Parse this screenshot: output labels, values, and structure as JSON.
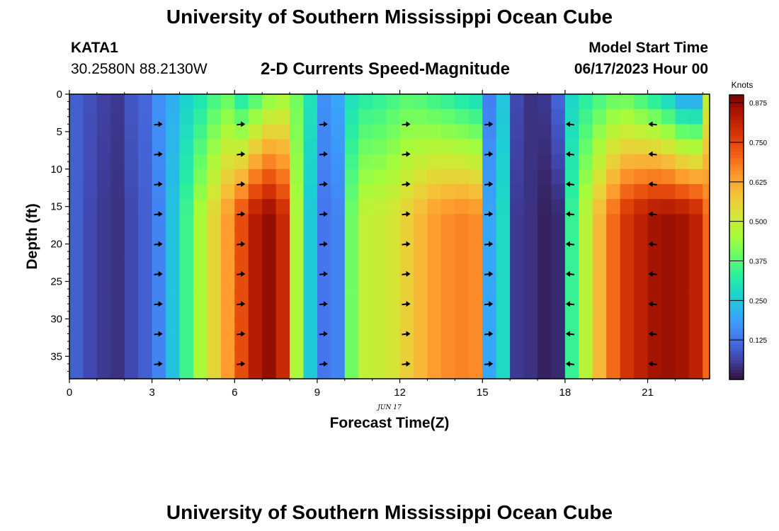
{
  "header": {
    "title_top": "University of Southern Mississippi Ocean Cube",
    "station": "KATA1",
    "coords": "30.2580N  88.2130W",
    "subtitle": "2-D Currents Speed-Magnitude",
    "model_label": "Model Start Time",
    "model_time": "06/17/2023 Hour 00",
    "title_bottom": "University of Southern Mississippi Ocean Cube"
  },
  "chart_data": {
    "type": "heatmap",
    "title": "2-D Currents Speed-Magnitude",
    "xlabel": "Forecast Time(Z)",
    "ylabel": "Depth (ft)",
    "x_date_label": "JUN 17",
    "xlim": [
      0,
      23.25
    ],
    "ylim": [
      0,
      38
    ],
    "x_ticks": [
      0,
      3,
      6,
      9,
      12,
      15,
      18,
      21
    ],
    "y_ticks": [
      0,
      5,
      10,
      15,
      20,
      25,
      30,
      35
    ],
    "colorbar": {
      "label": "Knots",
      "range": [
        0,
        0.9
      ],
      "ticks": [
        "0.875",
        "0.750",
        "0.625",
        "0.500",
        "0.375",
        "0.250",
        "0.125"
      ]
    },
    "colormap": [
      "#30123b",
      "#4145ab",
      "#4675ed",
      "#39a2fc",
      "#1bcfd4",
      "#24eca6",
      "#61fc6c",
      "#a4fc3b",
      "#d1e834",
      "#f3c63a",
      "#fe9b2d",
      "#f36315",
      "#d93806",
      "#b11901",
      "#7a0402"
    ],
    "time_hours": [
      0,
      0.5,
      1,
      1.5,
      2,
      2.5,
      3,
      3.5,
      4,
      4.5,
      5,
      5.5,
      6,
      6.5,
      7,
      7.5,
      8,
      8.5,
      9,
      9.5,
      10,
      10.5,
      11,
      11.5,
      12,
      12.5,
      13,
      13.5,
      14,
      14.5,
      15,
      15.5,
      16,
      16.5,
      17,
      17.5,
      18,
      18.5,
      19,
      19.5,
      20,
      20.5,
      21,
      21.5,
      22,
      22.5,
      23
    ],
    "speed_profile_bottom_knots": [
      0.1,
      0.07,
      0.05,
      0.04,
      0.07,
      0.1,
      0.15,
      0.24,
      0.35,
      0.46,
      0.55,
      0.64,
      0.74,
      0.83,
      0.87,
      0.8,
      0.46,
      0.25,
      0.13,
      0.15,
      0.4,
      0.49,
      0.5,
      0.52,
      0.56,
      0.6,
      0.64,
      0.66,
      0.67,
      0.66,
      0.2,
      0.28,
      0.05,
      0.04,
      0.02,
      0.03,
      0.34,
      0.48,
      0.6,
      0.7,
      0.78,
      0.82,
      0.85,
      0.86,
      0.85,
      0.82,
      0.7
    ],
    "speed_profile_surface_knots": [
      0.1,
      0.08,
      0.06,
      0.05,
      0.09,
      0.11,
      0.17,
      0.21,
      0.26,
      0.3,
      0.35,
      0.38,
      0.3,
      0.35,
      0.41,
      0.44,
      0.4,
      0.3,
      0.17,
      0.2,
      0.29,
      0.32,
      0.33,
      0.35,
      0.37,
      0.36,
      0.34,
      0.32,
      0.3,
      0.28,
      0.14,
      0.24,
      0.07,
      0.04,
      0.05,
      0.11,
      0.27,
      0.32,
      0.35,
      0.38,
      0.38,
      0.34,
      0.3,
      0.25,
      0.18,
      0.18,
      0.48
    ],
    "arrow_times": [
      3,
      6,
      9,
      12,
      15,
      18,
      21
    ],
    "arrow_depths": [
      4,
      8,
      12,
      16,
      20,
      24,
      28,
      32,
      36
    ],
    "arrow_direction": [
      "east",
      "east",
      "east",
      "east",
      "east",
      "west",
      "west"
    ]
  }
}
